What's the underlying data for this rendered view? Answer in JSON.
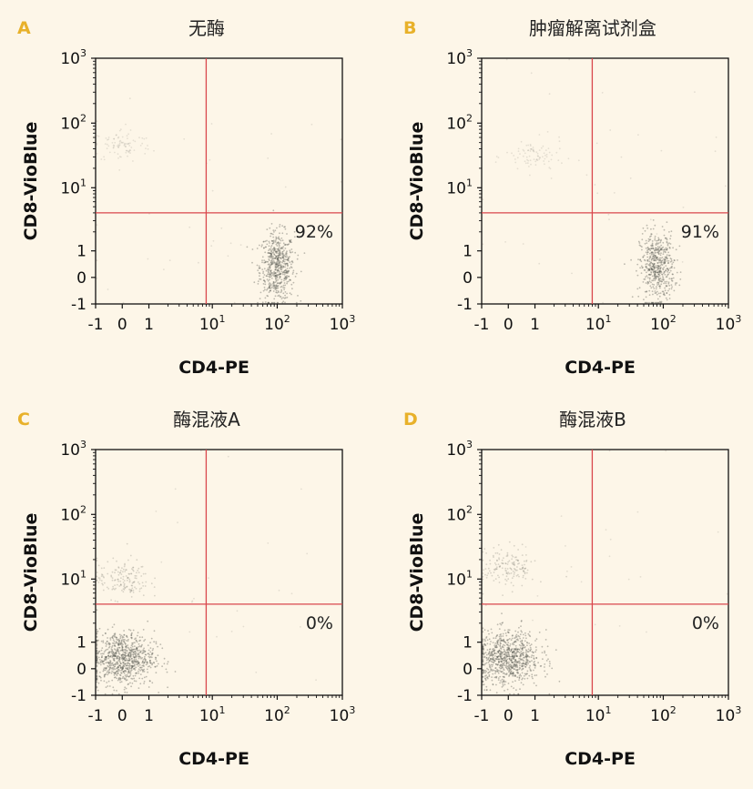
{
  "colors": {
    "background": "#fdf6e8",
    "panel_letter": "#e8b12a",
    "gate_line": "#d9474c",
    "dots": "#55564f",
    "axis": "#111111"
  },
  "chart_data": [
    {
      "type": "scatter",
      "panel_label": "A",
      "title": "无酶",
      "xlabel": "CD4-PE",
      "ylabel": "CD8-VioBlue",
      "x_scale": "biexponential",
      "y_scale": "biexponential",
      "xlim": [
        -1,
        1000
      ],
      "ylim": [
        -1,
        1000
      ],
      "x_tick_labels": [
        "-1",
        "0",
        "1",
        "10^1",
        "10^2",
        "10^3"
      ],
      "y_tick_labels": [
        "-1",
        "0",
        "1",
        "10^1",
        "10^2",
        "10^3"
      ],
      "gate": {
        "x": 8,
        "y": 4
      },
      "quadrant_label": "92%",
      "populations": [
        {
          "name": "",
          "x_center": 100,
          "y_center": 0.4,
          "density": "high",
          "count_est": 1000
        },
        {
          "name": "",
          "x_center": 0,
          "y_center": 45,
          "density": "low",
          "count_est": 150
        },
        {
          "name": "",
          "x_center": 10,
          "y_center": 10,
          "density": "sparse",
          "count_est": 60
        }
      ]
    },
    {
      "type": "scatter",
      "panel_label": "B",
      "title": "肿瘤解离试剂盒",
      "xlabel": "CD4-PE",
      "ylabel": "CD8-VioBlue",
      "x_scale": "biexponential",
      "y_scale": "biexponential",
      "xlim": [
        -1,
        1000
      ],
      "ylim": [
        -1,
        1000
      ],
      "x_tick_labels": [
        "-1",
        "0",
        "1",
        "10^1",
        "10^2",
        "10^3"
      ],
      "y_tick_labels": [
        "-1",
        "0",
        "1",
        "10^1",
        "10^2",
        "10^3"
      ],
      "gate": {
        "x": 8,
        "y": 4
      },
      "quadrant_label": "91%",
      "populations": [
        {
          "name": "",
          "x_center": 80,
          "y_center": 0.4,
          "density": "high",
          "count_est": 900
        },
        {
          "name": "",
          "x_center": 1,
          "y_center": 30,
          "density": "low",
          "count_est": 140
        },
        {
          "name": "",
          "x_center": 10,
          "y_center": 10,
          "density": "sparse",
          "count_est": 60
        }
      ]
    },
    {
      "type": "scatter",
      "panel_label": "C",
      "title": "酶混液A",
      "xlabel": "CD4-PE",
      "ylabel": "CD8-VioBlue",
      "x_scale": "biexponential",
      "y_scale": "biexponential",
      "xlim": [
        -1,
        1000
      ],
      "ylim": [
        -1,
        1000
      ],
      "x_tick_labels": [
        "-1",
        "0",
        "1",
        "10^1",
        "10^2",
        "10^3"
      ],
      "y_tick_labels": [
        "-1",
        "0",
        "1",
        "10^1",
        "10^2",
        "10^3"
      ],
      "gate": {
        "x": 8,
        "y": 4
      },
      "quadrant_label": "0%",
      "populations": [
        {
          "name": "",
          "x_center": 0,
          "y_center": 0.4,
          "density": "high",
          "count_est": 1400
        },
        {
          "name": "",
          "x_center": 0,
          "y_center": 10,
          "density": "medium",
          "count_est": 260
        },
        {
          "name": "",
          "x_center": 10,
          "y_center": 10,
          "density": "sparse",
          "count_est": 40
        }
      ]
    },
    {
      "type": "scatter",
      "panel_label": "D",
      "title": "酶混液B",
      "xlabel": "CD4-PE",
      "ylabel": "CD8-VioBlue",
      "x_scale": "biexponential",
      "y_scale": "biexponential",
      "xlim": [
        -1,
        1000
      ],
      "ylim": [
        -1,
        1000
      ],
      "x_tick_labels": [
        "-1",
        "0",
        "1",
        "10^1",
        "10^2",
        "10^3"
      ],
      "y_tick_labels": [
        "-1",
        "0",
        "1",
        "10^1",
        "10^2",
        "10^3"
      ],
      "gate": {
        "x": 8,
        "y": 4
      },
      "quadrant_label": "0%",
      "populations": [
        {
          "name": "",
          "x_center": 0,
          "y_center": 0.4,
          "density": "high",
          "count_est": 1400
        },
        {
          "name": "",
          "x_center": 0,
          "y_center": 15,
          "density": "medium",
          "count_est": 260
        },
        {
          "name": "",
          "x_center": 10,
          "y_center": 10,
          "density": "sparse",
          "count_est": 40
        }
      ]
    }
  ]
}
